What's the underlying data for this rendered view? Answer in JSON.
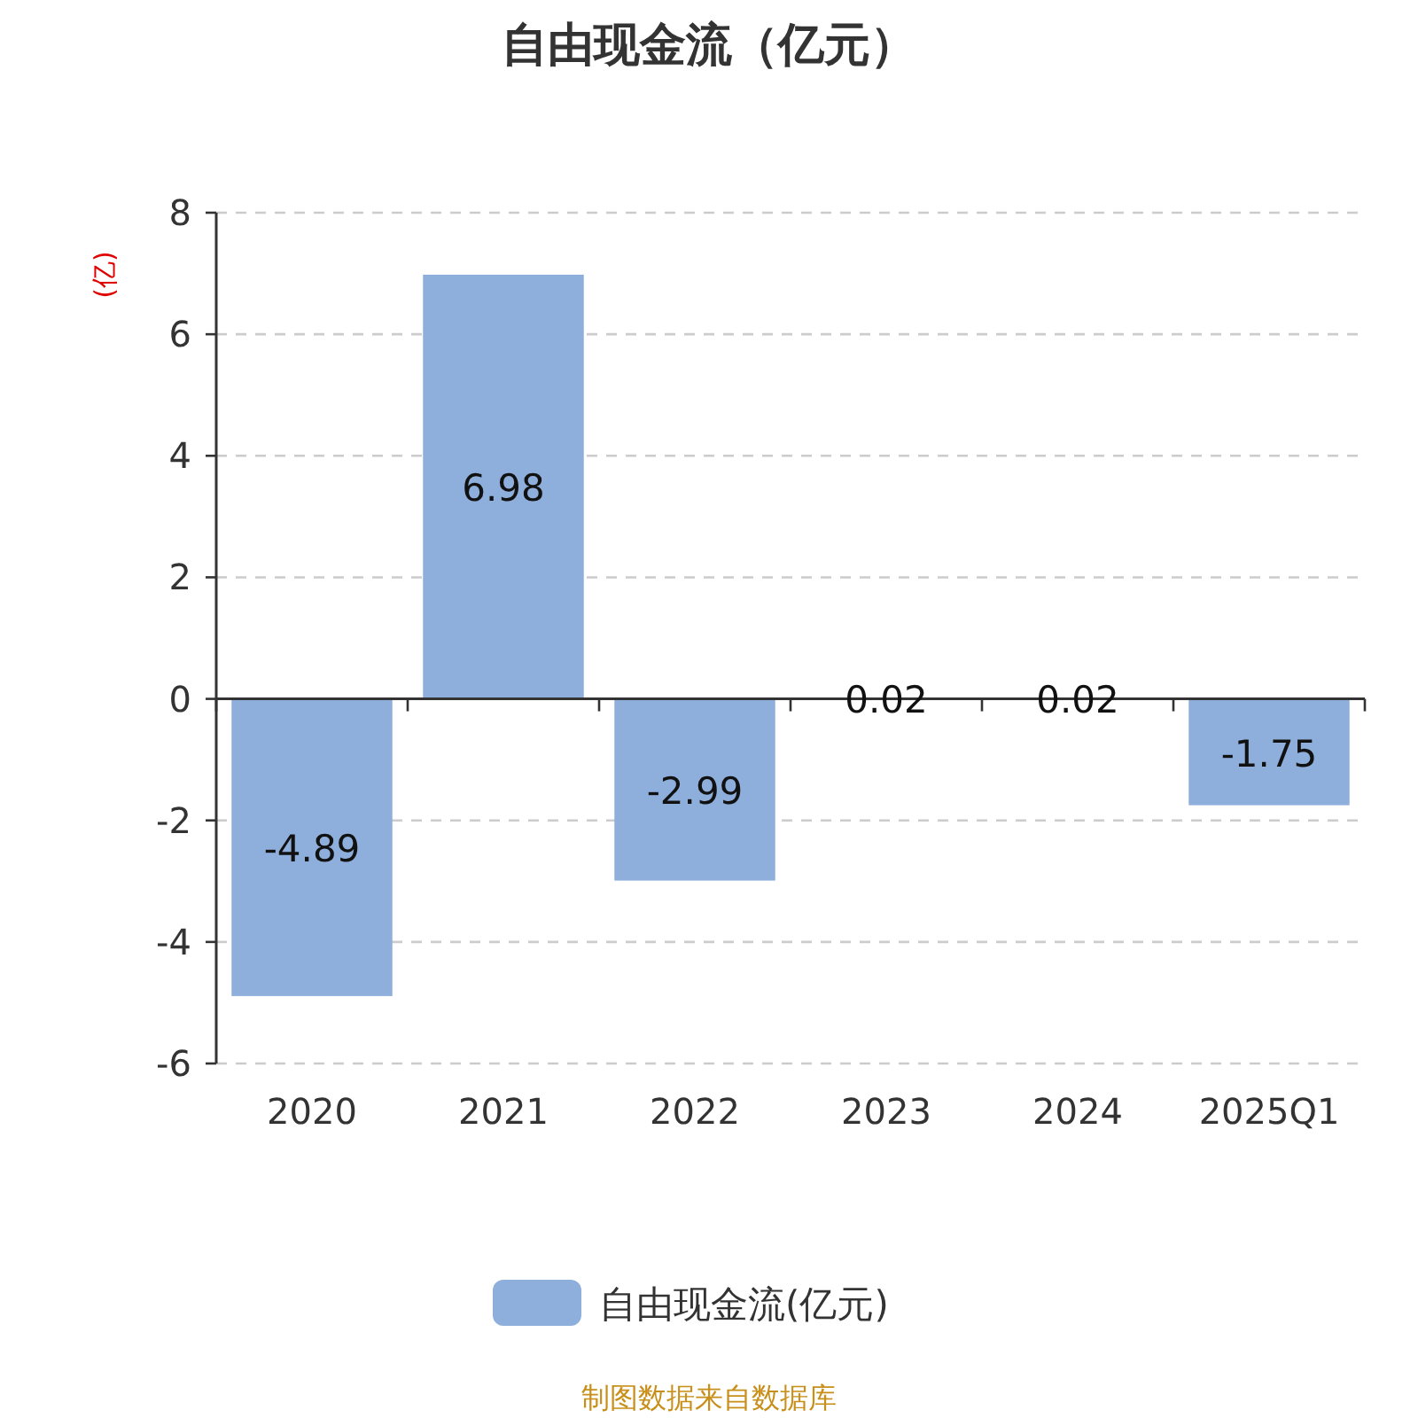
{
  "chart_data": {
    "type": "bar",
    "title": "自由现金流（亿元）",
    "ylabel": "(亿)",
    "categories": [
      "2020",
      "2021",
      "2022",
      "2023",
      "2024",
      "2025Q1"
    ],
    "series": [
      {
        "name": "自由现金流(亿元)",
        "color": "#8eaedb",
        "values": [
          -4.89,
          6.98,
          -2.99,
          0.02,
          0.02,
          -1.75
        ]
      }
    ],
    "ylim": [
      -6,
      8
    ],
    "yticks": [
      -6,
      -4,
      -2,
      0,
      2,
      4,
      6,
      8
    ],
    "grid": "y",
    "legend": "bottom",
    "data_labels": true,
    "annotations": [
      "制图数据来自数据库"
    ]
  }
}
